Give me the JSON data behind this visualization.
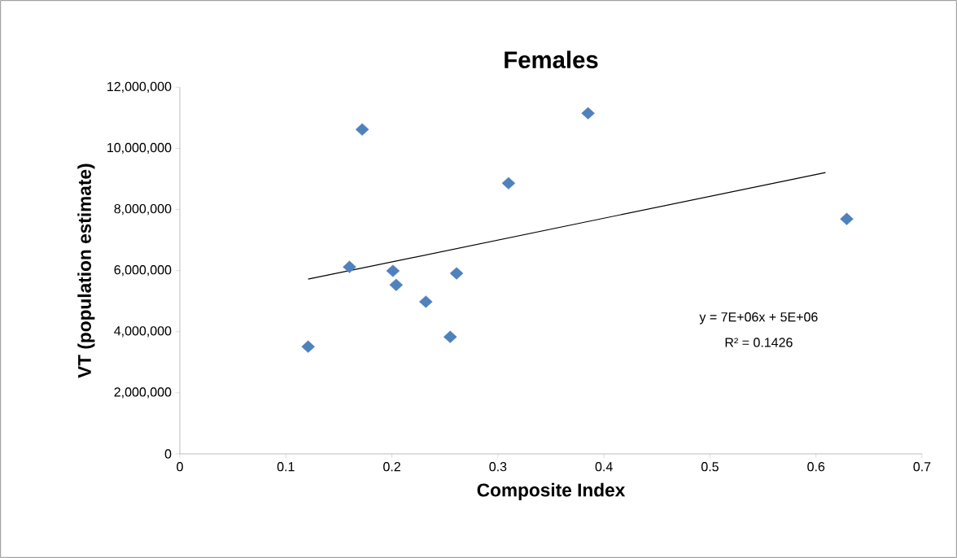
{
  "chart_data": {
    "type": "scatter",
    "title": "Females",
    "xlabel": "Composite Index",
    "ylabel": "VT (population estimate)",
    "xlim": [
      0,
      0.7
    ],
    "xticks": [
      0,
      0.1,
      0.2,
      0.3,
      0.4,
      0.5,
      0.6,
      0.7
    ],
    "ylim": [
      0,
      12000000
    ],
    "yticks": [
      {
        "value": 0,
        "label": "0"
      },
      {
        "value": 2000000,
        "label": "2,000,000"
      },
      {
        "value": 4000000,
        "label": "4,000,000"
      },
      {
        "value": 6000000,
        "label": "6,000,000"
      },
      {
        "value": 8000000,
        "label": "8,000,000"
      },
      {
        "value": 10000000,
        "label": "10,000,000"
      },
      {
        "value": 12000000,
        "label": "12,000,000"
      }
    ],
    "grid": false,
    "series": [
      {
        "color": "#4f81bd",
        "marker": "diamond",
        "x": [
          0.121,
          0.16,
          0.172,
          0.201,
          0.204,
          0.232,
          0.255,
          0.261,
          0.31,
          0.385,
          0.629
        ],
        "values": [
          3510000,
          6120000,
          10620000,
          5990000,
          5530000,
          4980000,
          3830000,
          5910000,
          8860000,
          11150000,
          7690000
        ]
      },
      {
        "type": "line",
        "color": "#000000",
        "marker": "none",
        "line_style": "solid",
        "x": [
          0.121,
          0.609
        ],
        "values": [
          5720000,
          9210000
        ]
      }
    ],
    "annotations": [
      "y = 7E+06x + 5E+06",
      "R² = 0.1426"
    ]
  }
}
